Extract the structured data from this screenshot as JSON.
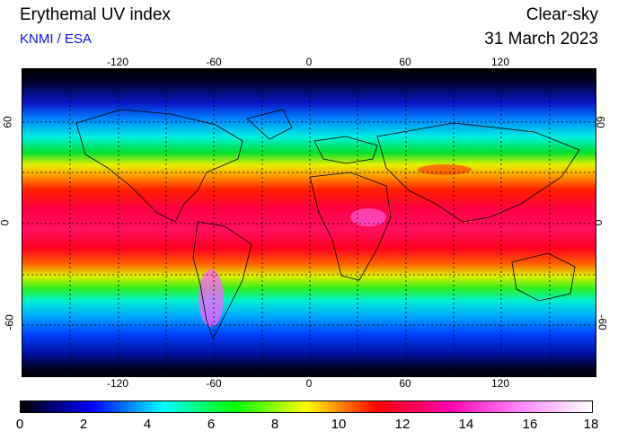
{
  "header": {
    "title": "Erythemal UV index",
    "credit": "KNMI / ESA",
    "condition": "Clear-sky",
    "date": "31 March 2023"
  },
  "map": {
    "longitude_labels": [
      "-120",
      "-60",
      "0",
      "60",
      "120"
    ],
    "latitude_labels": [
      "60",
      "0",
      "-60"
    ],
    "grid": true,
    "projection": "equirectangular"
  },
  "colorbar": {
    "min": 0,
    "max": 18,
    "tick_labels": [
      "0",
      "2",
      "4",
      "6",
      "8",
      "10",
      "12",
      "14",
      "16",
      "18"
    ],
    "colors": [
      "#000000",
      "#0000ff",
      "#00ffff",
      "#00ff00",
      "#ffff00",
      "#ff0000",
      "#ff00aa",
      "#ff88ff",
      "#ffffff"
    ]
  }
}
